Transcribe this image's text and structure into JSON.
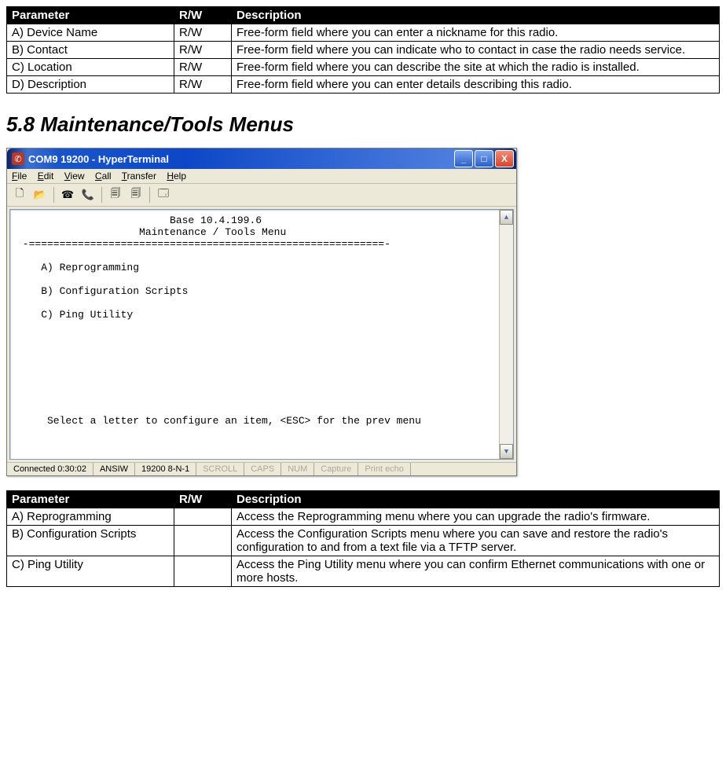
{
  "table1": {
    "headers": [
      "Parameter",
      "R/W",
      "Description"
    ],
    "rows": [
      {
        "param": "A) Device Name",
        "rw": "R/W",
        "desc": "Free-form field where you can enter a nickname for this radio."
      },
      {
        "param": "B) Contact",
        "rw": "R/W",
        "desc": "Free-form field where you can indicate who to contact in case the radio needs service."
      },
      {
        "param": "C) Location",
        "rw": "R/W",
        "desc": "Free-form field where you can describe the site at which the radio is installed."
      },
      {
        "param": "D) Description",
        "rw": "R/W",
        "desc": "Free-form field where you can enter details describing this radio."
      }
    ]
  },
  "section_heading": "5.8 Maintenance/Tools Menus",
  "window": {
    "title": "COM9 19200 - HyperTerminal",
    "menu": {
      "file": "File",
      "edit": "Edit",
      "view": "View",
      "call": "Call",
      "transfer": "Transfer",
      "help": "Help"
    },
    "terminal_lines": [
      "                         Base 10.4.199.6",
      "                    Maintenance / Tools Menu",
      " -==========================================================-",
      "",
      "    A) Reprogramming",
      "",
      "    B) Configuration Scripts",
      "",
      "    C) Ping Utility",
      "",
      "",
      "",
      "",
      "",
      "",
      "",
      "",
      "     Select a letter to configure an item, <ESC> for the prev menu"
    ],
    "status": {
      "connected": "Connected 0:30:02",
      "emulation": "ANSIW",
      "settings": "19200 8-N-1",
      "scroll": "SCROLL",
      "caps": "CAPS",
      "num": "NUM",
      "capture": "Capture",
      "echo": "Print echo"
    }
  },
  "table2": {
    "headers": [
      "Parameter",
      "R/W",
      "Description"
    ],
    "rows": [
      {
        "param": "A) Reprogramming",
        "rw": "",
        "desc": "Access the Reprogramming menu where you can upgrade the radio's firmware."
      },
      {
        "param": "B) Configuration Scripts",
        "rw": "",
        "desc": "Access the Configuration Scripts menu where you can save and restore the radio's configuration to and from a text file via a TFTP server."
      },
      {
        "param": "C) Ping Utility",
        "rw": "",
        "desc": "Access the Ping Utility menu where you can confirm Ethernet communications with one or more hosts."
      }
    ]
  }
}
